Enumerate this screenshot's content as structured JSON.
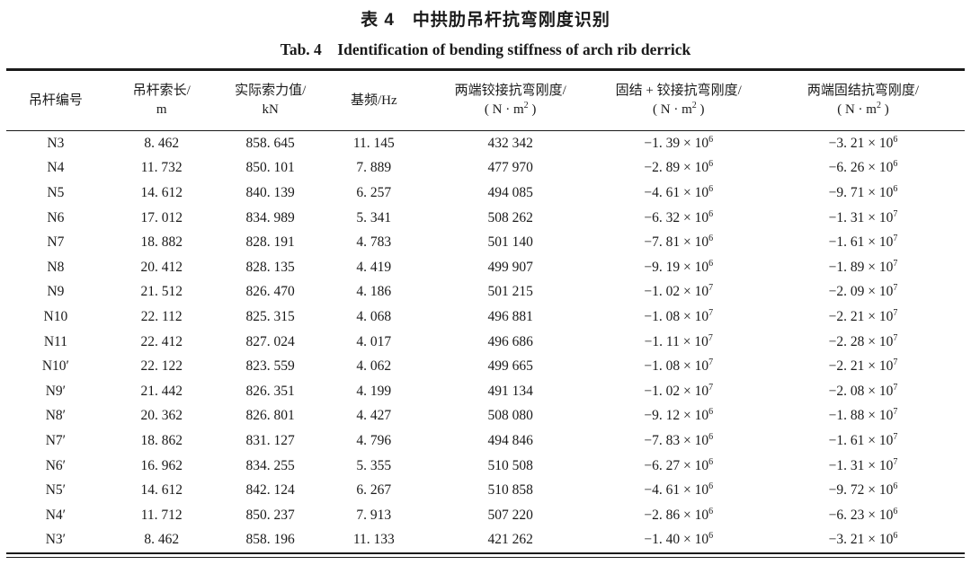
{
  "page": {
    "background": "#ffffff",
    "text_color": "#1a1a1a",
    "rule_color": "#1a1a1a"
  },
  "title": {
    "zh": "表 4　中拱肋吊杆抗弯刚度识别",
    "en": "Tab. 4　Identification of bending stiffness of arch rib derrick"
  },
  "table": {
    "columns": [
      {
        "id": "derrick-number",
        "lines": [
          "吊杆编号"
        ]
      },
      {
        "id": "cable-length",
        "lines": [
          "吊杆索长/",
          "m"
        ]
      },
      {
        "id": "actual-cable-force",
        "lines": [
          "实际索力值/",
          "kN"
        ]
      },
      {
        "id": "fundamental-frequency",
        "lines": [
          "基频/Hz"
        ]
      },
      {
        "id": "hinged-both-ends-stiffness",
        "lines": [
          "两端铰接抗弯刚度/",
          "( N · m^{2} )"
        ]
      },
      {
        "id": "fixed-plus-hinged-stiffness",
        "lines": [
          "固结 + 铰接抗弯刚度/",
          "( N · m^{2} )"
        ]
      },
      {
        "id": "fixed-both-ends-stiffness",
        "lines": [
          "两端固结抗弯刚度/",
          "( N · m^{2} )"
        ]
      }
    ],
    "rows": [
      [
        "N3",
        "8. 462",
        "858. 645",
        "11. 145",
        "432 342",
        "−1. 39 × 10^{6}",
        "−3. 21 × 10^{6}"
      ],
      [
        "N4",
        "11. 732",
        "850. 101",
        "7. 889",
        "477 970",
        "−2. 89 × 10^{6}",
        "−6. 26 × 10^{6}"
      ],
      [
        "N5",
        "14. 612",
        "840. 139",
        "6. 257",
        "494 085",
        "−4. 61 × 10^{6}",
        "−9. 71 × 10^{6}"
      ],
      [
        "N6",
        "17. 012",
        "834. 989",
        "5. 341",
        "508 262",
        "−6. 32 × 10^{6}",
        "−1. 31 × 10^{7}"
      ],
      [
        "N7",
        "18. 882",
        "828. 191",
        "4. 783",
        "501 140",
        "−7. 81 × 10^{6}",
        "−1. 61 × 10^{7}"
      ],
      [
        "N8",
        "20. 412",
        "828. 135",
        "4. 419",
        "499 907",
        "−9. 19 × 10^{6}",
        "−1. 89 × 10^{7}"
      ],
      [
        "N9",
        "21. 512",
        "826. 470",
        "4. 186",
        "501 215",
        "−1. 02 × 10^{7}",
        "−2. 09 × 10^{7}"
      ],
      [
        "N10",
        "22. 112",
        "825. 315",
        "4. 068",
        "496 881",
        "−1. 08 × 10^{7}",
        "−2. 21 × 10^{7}"
      ],
      [
        "N11",
        "22. 412",
        "827. 024",
        "4. 017",
        "496 686",
        "−1. 11 × 10^{7}",
        "−2. 28 × 10^{7}"
      ],
      [
        "N10′",
        "22. 122",
        "823. 559",
        "4. 062",
        "499 665",
        "−1. 08 × 10^{7}",
        "−2. 21 × 10^{7}"
      ],
      [
        "N9′",
        "21. 442",
        "826. 351",
        "4. 199",
        "491 134",
        "−1. 02 × 10^{7}",
        "−2. 08 × 10^{7}"
      ],
      [
        "N8′",
        "20. 362",
        "826. 801",
        "4. 427",
        "508 080",
        "−9. 12 × 10^{6}",
        "−1. 88 × 10^{7}"
      ],
      [
        "N7′",
        "18. 862",
        "831. 127",
        "4. 796",
        "494 846",
        "−7. 83 × 10^{6}",
        "−1. 61 × 10^{7}"
      ],
      [
        "N6′",
        "16. 962",
        "834. 255",
        "5. 355",
        "510 508",
        "−6. 27 × 10^{6}",
        "−1. 31 × 10^{7}"
      ],
      [
        "N5′",
        "14. 612",
        "842. 124",
        "6. 267",
        "510 858",
        "−4. 61 × 10^{6}",
        "−9. 72 × 10^{6}"
      ],
      [
        "N4′",
        "11. 712",
        "850. 237",
        "7. 913",
        "507 220",
        "−2. 86 × 10^{6}",
        "−6. 23 × 10^{6}"
      ],
      [
        "N3′",
        "8. 462",
        "858. 196",
        "11. 133",
        "421 262",
        "−1. 40 × 10^{6}",
        "−3. 21 × 10^{6}"
      ]
    ]
  }
}
